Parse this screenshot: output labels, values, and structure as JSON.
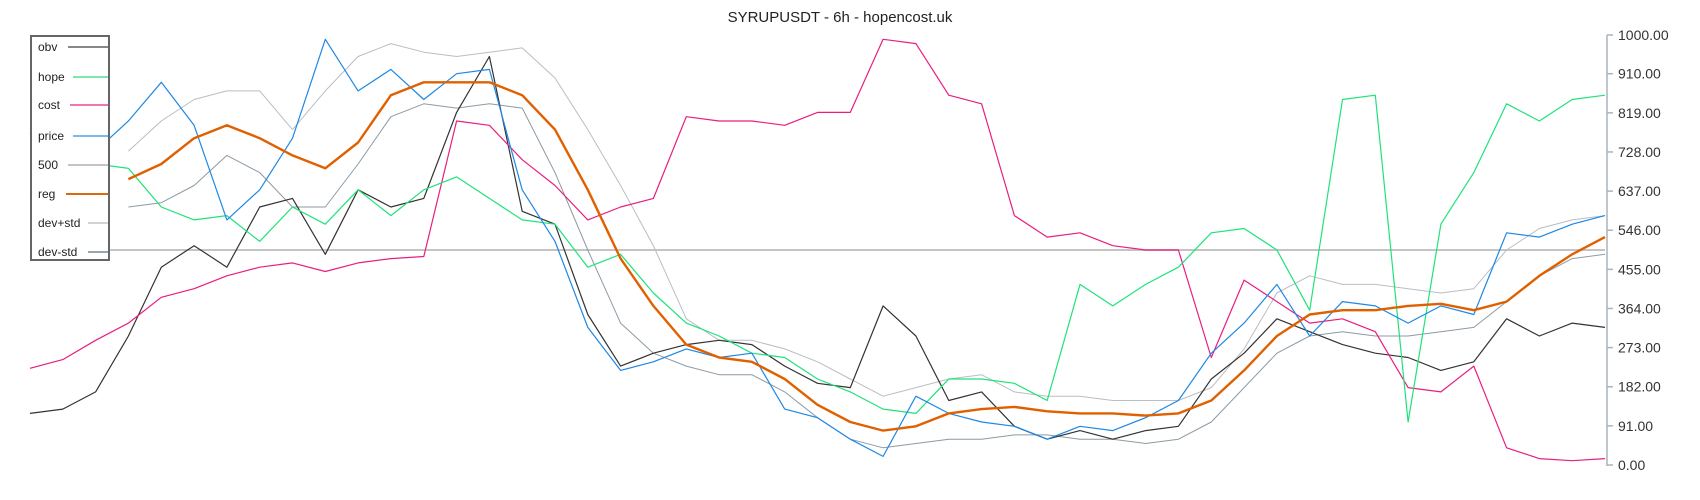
{
  "chart_data": {
    "type": "line",
    "title": "SYRUPUSDT - 6h - hopencost.uk",
    "xlabel": "",
    "ylabel": "",
    "ylim": [
      0,
      1000
    ],
    "y_ticks": [
      "1000.00",
      "910.00",
      "819.00",
      "728.00",
      "637.00",
      "546.00",
      "455.00",
      "364.00",
      "273.00",
      "182.00",
      "91.00",
      "0.00"
    ],
    "y_tick_values": [
      1000,
      910,
      819,
      728,
      637,
      546,
      455,
      364,
      273,
      182,
      91,
      0
    ],
    "y_axis_position": "right",
    "grid": false,
    "legend_position": "top-left",
    "x": [
      0,
      1,
      2,
      3,
      4,
      5,
      6,
      7,
      8,
      9,
      10,
      11,
      12,
      13,
      14,
      15,
      16,
      17,
      18,
      19,
      20,
      21,
      22,
      23,
      24,
      25,
      26,
      27,
      28,
      29,
      30,
      31,
      32,
      33,
      34,
      35,
      36,
      37,
      38,
      39,
      40,
      41,
      42,
      43,
      44,
      45,
      46,
      47,
      48
    ],
    "series": [
      {
        "name": "obv",
        "color": "#333333",
        "legend_color": "#888888",
        "width": 1.2,
        "values": [
          120,
          130,
          170,
          300,
          460,
          510,
          460,
          600,
          620,
          490,
          640,
          600,
          620,
          820,
          950,
          590,
          560,
          350,
          230,
          260,
          280,
          290,
          280,
          230,
          190,
          180,
          370,
          300,
          150,
          170,
          90,
          60,
          80,
          60,
          80,
          90,
          200,
          260,
          340,
          310,
          280,
          260,
          250,
          220,
          240,
          340,
          300,
          330,
          320
        ]
      },
      {
        "name": "hope",
        "color": "#1ee37a",
        "legend_color": "#7de8ac",
        "width": 1.2,
        "values": [
          620,
          640,
          700,
          690,
          600,
          570,
          580,
          520,
          600,
          560,
          640,
          580,
          640,
          670,
          620,
          570,
          560,
          460,
          490,
          400,
          330,
          300,
          260,
          250,
          200,
          170,
          130,
          120,
          200,
          200,
          190,
          150,
          420,
          370,
          420,
          460,
          540,
          550,
          500,
          360,
          850,
          860,
          100,
          560,
          680,
          840,
          800,
          850,
          860
        ]
      },
      {
        "name": "cost",
        "color": "#e91e7f",
        "legend_color": "#ee77b2",
        "width": 1.2,
        "values": [
          225,
          245,
          290,
          330,
          390,
          410,
          440,
          460,
          470,
          450,
          470,
          480,
          485,
          800,
          790,
          710,
          650,
          570,
          600,
          620,
          810,
          800,
          800,
          790,
          820,
          820,
          990,
          980,
          860,
          840,
          580,
          530,
          540,
          510,
          500,
          500,
          250,
          430,
          380,
          330,
          340,
          310,
          180,
          170,
          230,
          40,
          15,
          10,
          15
        ]
      },
      {
        "name": "price",
        "color": "#1e88e5",
        "legend_color": "#7ab8ef",
        "width": 1.2,
        "values": [
          770,
          840,
          730,
          800,
          890,
          790,
          570,
          640,
          760,
          990,
          870,
          920,
          850,
          910,
          920,
          640,
          520,
          320,
          220,
          240,
          270,
          250,
          260,
          130,
          110,
          60,
          20,
          160,
          120,
          100,
          90,
          60,
          90,
          80,
          110,
          150,
          260,
          330,
          420,
          300,
          380,
          370,
          330,
          370,
          350,
          540,
          530,
          560,
          580
        ]
      },
      {
        "name": "500",
        "color": "#c4c4c4",
        "legend_color": "#c4c4c4",
        "width": 2,
        "values": [
          500,
          500,
          500,
          500,
          500,
          500,
          500,
          500,
          500,
          500,
          500,
          500,
          500,
          500,
          500,
          500,
          500,
          500,
          500,
          500,
          500,
          500,
          500,
          500,
          500,
          500,
          500,
          500,
          500,
          500,
          500,
          500,
          500,
          500,
          500,
          500,
          500,
          500,
          500,
          500,
          500,
          500,
          500,
          500,
          500,
          500,
          500,
          500,
          500
        ]
      },
      {
        "name": "reg",
        "color": "#e06000",
        "legend_color": "#d96a10",
        "width": 2.4,
        "values": [
          null,
          null,
          null,
          665,
          700,
          760,
          790,
          760,
          720,
          690,
          750,
          860,
          890,
          890,
          890,
          860,
          780,
          640,
          480,
          370,
          280,
          250,
          240,
          200,
          140,
          100,
          80,
          90,
          120,
          130,
          135,
          125,
          120,
          120,
          115,
          120,
          150,
          220,
          300,
          350,
          360,
          360,
          370,
          375,
          360,
          380,
          440,
          490,
          530
        ]
      },
      {
        "name": "dev+std",
        "color": "#b8bec3",
        "legend_color": "#d0d4d8",
        "width": 1,
        "values": [
          null,
          null,
          null,
          730,
          800,
          850,
          870,
          870,
          780,
          870,
          950,
          980,
          960,
          950,
          960,
          970,
          900,
          780,
          650,
          510,
          340,
          290,
          290,
          270,
          240,
          200,
          160,
          180,
          200,
          210,
          170,
          160,
          160,
          150,
          150,
          150,
          180,
          270,
          400,
          440,
          420,
          420,
          410,
          400,
          410,
          500,
          550,
          570,
          580
        ]
      },
      {
        "name": "dev-std",
        "color": "#8d9aa3",
        "legend_color": "#9aa6ae",
        "width": 1,
        "values": [
          null,
          null,
          null,
          600,
          610,
          650,
          720,
          680,
          600,
          600,
          700,
          810,
          840,
          830,
          840,
          830,
          680,
          500,
          330,
          260,
          230,
          210,
          210,
          170,
          110,
          60,
          40,
          50,
          60,
          60,
          70,
          70,
          60,
          60,
          50,
          60,
          100,
          180,
          260,
          300,
          310,
          300,
          300,
          310,
          320,
          380,
          440,
          480,
          490
        ]
      }
    ]
  }
}
